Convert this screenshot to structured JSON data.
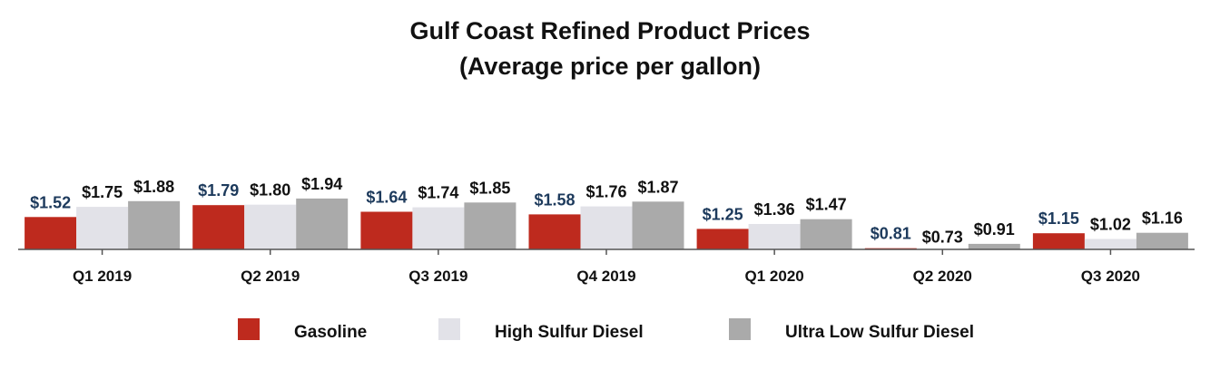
{
  "chart_data": {
    "type": "bar",
    "title": "Gulf Coast Refined Product Prices",
    "subtitle": "(Average price per gallon)",
    "xlabel": "",
    "ylabel": "",
    "ylim": [
      0,
      2.0
    ],
    "grid": false,
    "legend_position": "bottom",
    "categories": [
      "Q1 2019",
      "Q2 2019",
      "Q3 2019",
      "Q4 2019",
      "Q1 2020",
      "Q2 2020",
      "Q3 2020"
    ],
    "series": [
      {
        "name": "Gasoline",
        "color": "#be2a1e",
        "label_color": "#1d3a5c",
        "values": [
          1.52,
          1.79,
          1.64,
          1.58,
          1.25,
          0.81,
          1.15
        ],
        "labels": [
          "$1.52",
          "$1.79",
          "$1.64",
          "$1.58",
          "$1.25",
          "$0.81",
          "$1.15"
        ]
      },
      {
        "name": "High Sulfur Diesel",
        "color": "#e2e2e8",
        "label_color": "#111111",
        "values": [
          1.75,
          1.8,
          1.74,
          1.76,
          1.36,
          0.73,
          1.02
        ],
        "labels": [
          "$1.75",
          "$1.80",
          "$1.74",
          "$1.76",
          "$1.36",
          "$0.73",
          "$1.02"
        ]
      },
      {
        "name": "Ultra Low Sulfur Diesel",
        "color": "#aaaaaa",
        "label_color": "#111111",
        "values": [
          1.88,
          1.94,
          1.85,
          1.87,
          1.47,
          0.91,
          1.16
        ],
        "labels": [
          "$1.88",
          "$1.94",
          "$1.85",
          "$1.87",
          "$1.47",
          "$0.91",
          "$1.16"
        ]
      }
    ]
  }
}
